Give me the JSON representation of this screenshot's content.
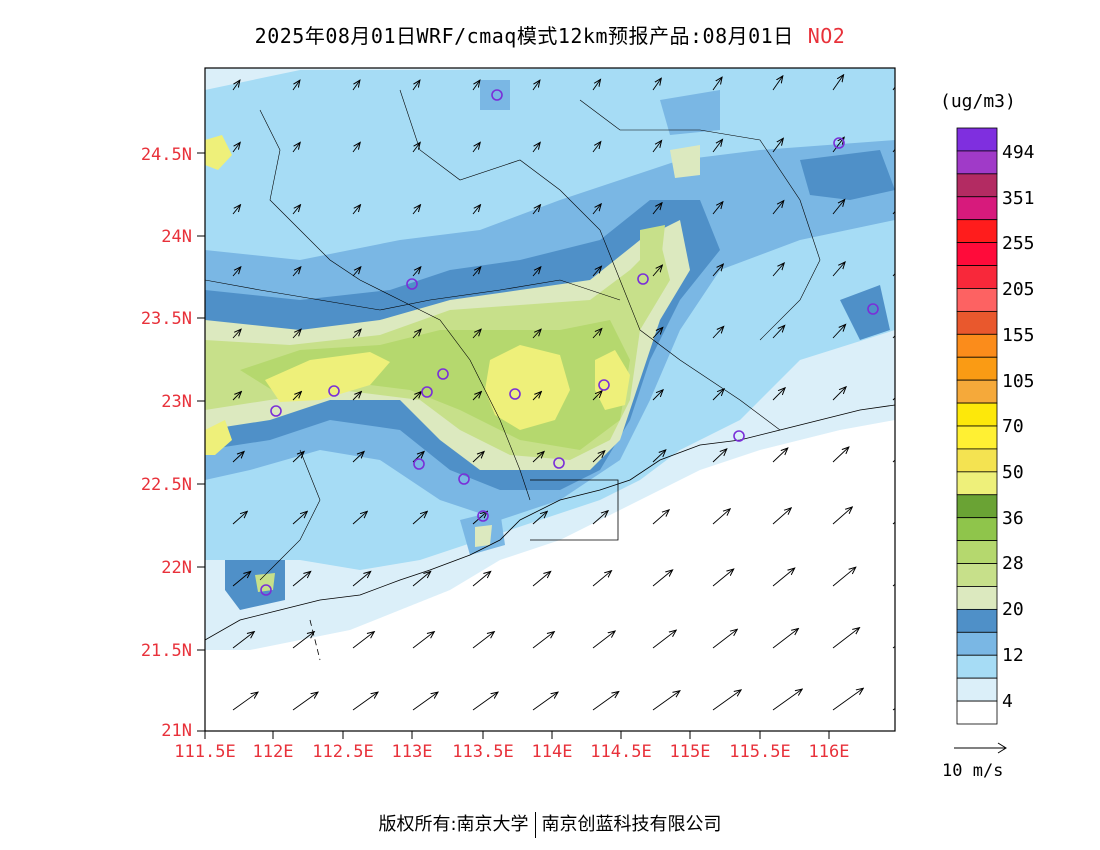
{
  "header": {
    "title": "2025年08月01日WRF/cmaq模式12km预报产品:08月01日",
    "pollutant": "NO2"
  },
  "axes": {
    "lat_labels": [
      "24.5N",
      "24N",
      "23.5N",
      "23N",
      "22.5N",
      "22N",
      "21.5N",
      "21N"
    ],
    "lon_labels": [
      "111.5E",
      "112E",
      "112.5E",
      "113E",
      "113.5E",
      "114E",
      "114.5E",
      "115E",
      "115.5E",
      "116E"
    ]
  },
  "colorbar": {
    "unit": "(ug/m3)",
    "colors": [
      "#ffffff",
      "#dbeff9",
      "#a6dcf5",
      "#7ab7e4",
      "#4f90c8",
      "#dce9bf",
      "#c7e08a",
      "#b5d86e",
      "#8fc54b",
      "#6aa334",
      "#eef07a",
      "#f4e351",
      "#fff033",
      "#fde80a",
      "#f5a93a",
      "#fa9b14",
      "#fb8c1b",
      "#e9582d",
      "#fd6262",
      "#f8283a",
      "#ff0b3a",
      "#ff1c1c",
      "#d71a7c",
      "#b32b62",
      "#a03ac8",
      "#7f2fdf"
    ],
    "labels": [
      "4",
      "12",
      "20",
      "28",
      "36",
      "50",
      "70",
      "105",
      "155",
      "205",
      "255",
      "351",
      "494"
    ]
  },
  "wind_legend": {
    "label": "10 m/s"
  },
  "footer": {
    "left": "版权所有:南京大学",
    "right": "南京创蓝科技有限公司"
  }
}
